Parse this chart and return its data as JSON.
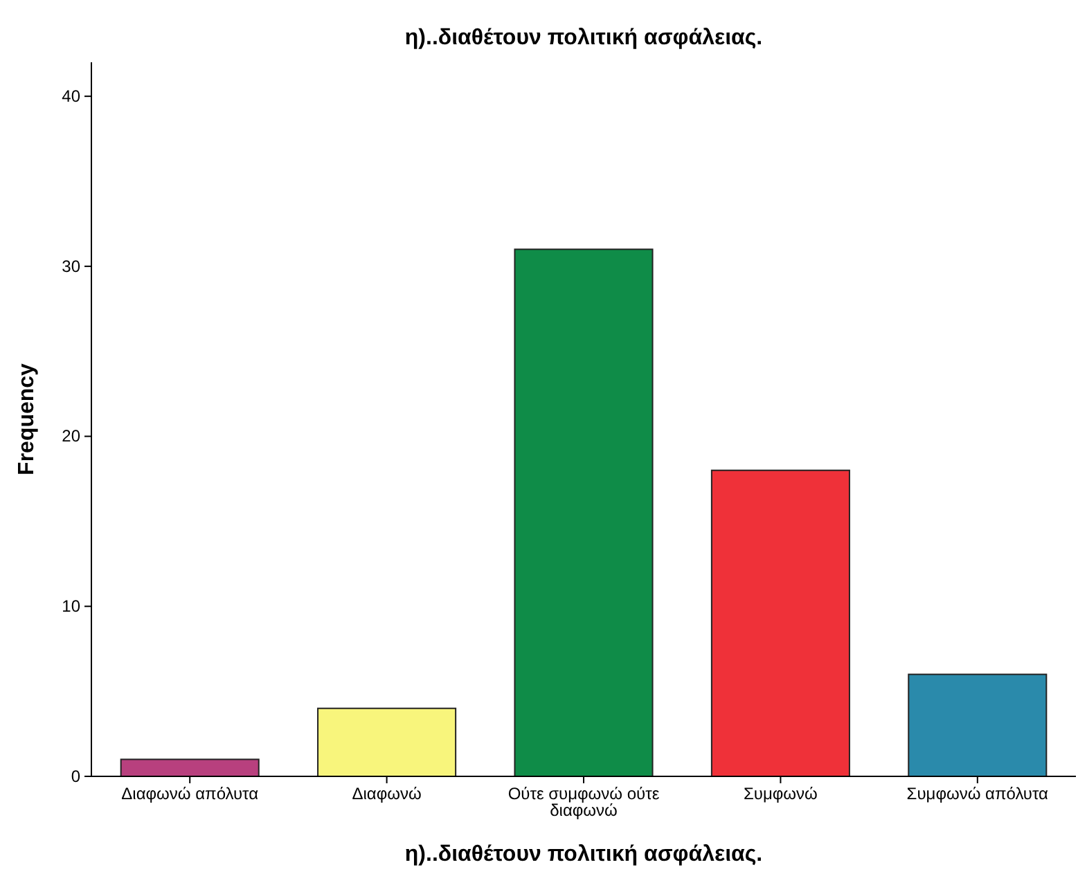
{
  "chart_data": {
    "type": "bar",
    "title": "η)..διαθέτουν πολιτική ασφάλειας.",
    "xlabel": "η)..διαθέτουν πολιτική ασφάλειας.",
    "ylabel": "Frequency",
    "categories": [
      "Διαφωνώ απόλυτα",
      "Διαφωνώ",
      "Ούτε συμφωνώ ούτε διαφωνώ",
      "Συμφωνώ",
      "Συμφωνώ απόλυτα"
    ],
    "values": [
      1,
      4,
      31,
      18,
      6
    ],
    "colors": [
      "#b8407e",
      "#f8f57c",
      "#0f8c48",
      "#ef3139",
      "#2a8aab"
    ],
    "ylim": [
      0,
      42
    ],
    "yticks": [
      0,
      10,
      20,
      30,
      40
    ],
    "grid": false
  }
}
